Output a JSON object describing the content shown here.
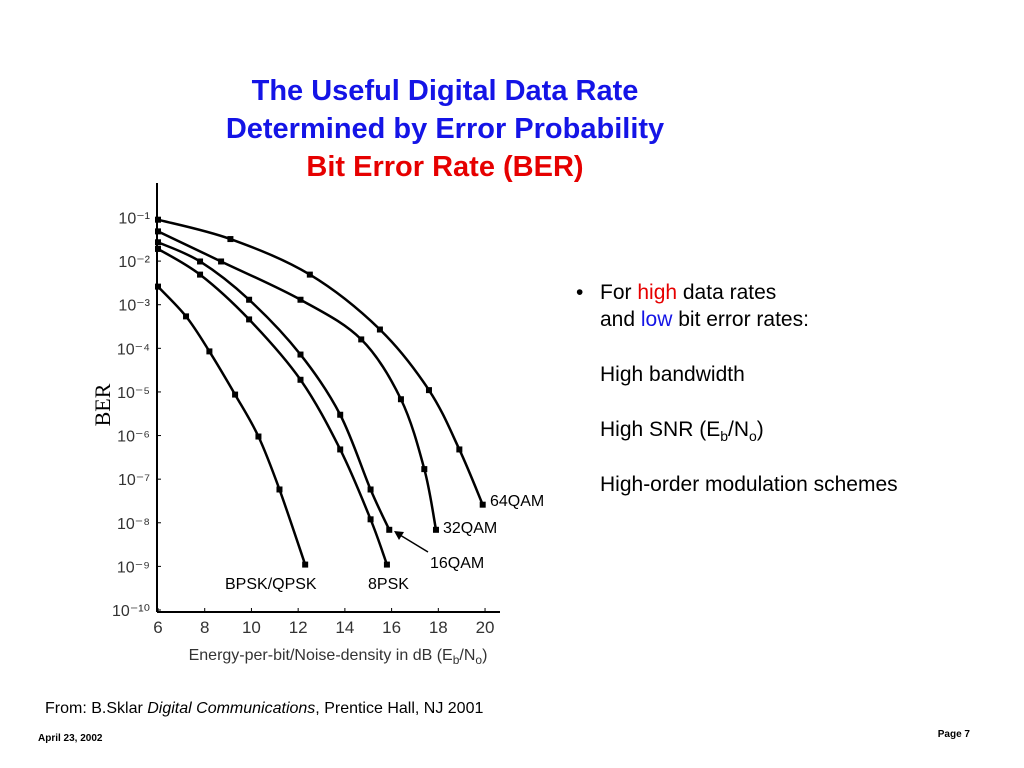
{
  "title": [
    "The Useful Digital Data Rate",
    "Determined by Error Probability",
    "Bit Error Rate (BER)"
  ],
  "chart_data": {
    "type": "line",
    "ylabel": "BER",
    "xlabel": [
      "Energy-per-bit/Noise-density in dB (E",
      "b",
      "/N",
      "o",
      ")"
    ],
    "xlim": [
      6,
      21
    ],
    "ylim": [
      1e-10,
      0.5
    ],
    "log_y": true,
    "grid": false,
    "xticks": [
      6,
      8,
      10,
      12,
      14,
      16,
      18,
      20
    ],
    "yticks": [
      {
        "value": 0.1,
        "label": "10⁻¹"
      },
      {
        "value": 0.01,
        "label": "10⁻²"
      },
      {
        "value": 0.001,
        "label": "10⁻³"
      },
      {
        "value": 0.0001,
        "label": "10⁻⁴"
      },
      {
        "value": 1e-05,
        "label": "10⁻⁵"
      },
      {
        "value": 1e-06,
        "label": "10⁻⁶"
      },
      {
        "value": 1e-07,
        "label": "10⁻⁷"
      },
      {
        "value": 1e-08,
        "label": "10⁻⁸"
      },
      {
        "value": 1e-09,
        "label": "10⁻⁹"
      },
      {
        "value": 1e-10,
        "label": "10⁻¹⁰"
      }
    ],
    "series": [
      {
        "name": "BPSK/QPSK",
        "color": "#000000",
        "x": [
          6,
          7.2,
          8.2,
          9.3,
          10.3,
          11.2,
          12.3
        ],
        "values": [
          0.0026,
          0.00054,
          8.5e-05,
          8.7e-06,
          9.5e-07,
          5.8e-08,
          1.1e-09
        ]
      },
      {
        "name": "8PSK",
        "color": "#000000",
        "x": [
          6,
          7.8,
          9.9,
          12.1,
          13.8,
          15.1,
          15.8
        ],
        "values": [
          0.019,
          0.0049,
          0.00046,
          1.9e-05,
          4.8e-07,
          1.2e-08,
          1.1e-09
        ]
      },
      {
        "name": "16QAM",
        "color": "#000000",
        "x": [
          6,
          7.8,
          9.9,
          12.1,
          13.8,
          15.1,
          15.9
        ],
        "values": [
          0.027,
          0.0098,
          0.0013,
          7.2e-05,
          3e-06,
          5.8e-08,
          6.9e-09
        ]
      },
      {
        "name": "32QAM",
        "color": "#000000",
        "x": [
          6,
          8.7,
          12.1,
          14.7,
          16.4,
          17.4,
          17.9
        ],
        "values": [
          0.048,
          0.0098,
          0.0013,
          0.00016,
          6.8e-06,
          1.7e-07,
          6.9e-09
        ]
      },
      {
        "name": "64QAM",
        "color": "#000000",
        "x": [
          6,
          9.1,
          12.5,
          15.5,
          17.6,
          18.9,
          19.9
        ],
        "values": [
          0.089,
          0.032,
          0.0049,
          0.00027,
          1.1e-05,
          4.8e-07,
          2.6e-08
        ]
      }
    ]
  },
  "bullets": [
    [
      "For ",
      "high",
      " data rates"
    ],
    [
      "and ",
      "low",
      " bit error rates:"
    ],
    [
      "High bandwidth"
    ],
    [
      "High SNR (E",
      "b",
      "/N",
      "o",
      ")"
    ],
    [
      "High-order modulation schemes"
    ]
  ],
  "source": [
    "From: B.Sklar ",
    "Digital Communications",
    ", Prentice Hall, NJ 2001"
  ],
  "footer": {
    "date": "April 23, 2002",
    "page": "Page 7"
  }
}
